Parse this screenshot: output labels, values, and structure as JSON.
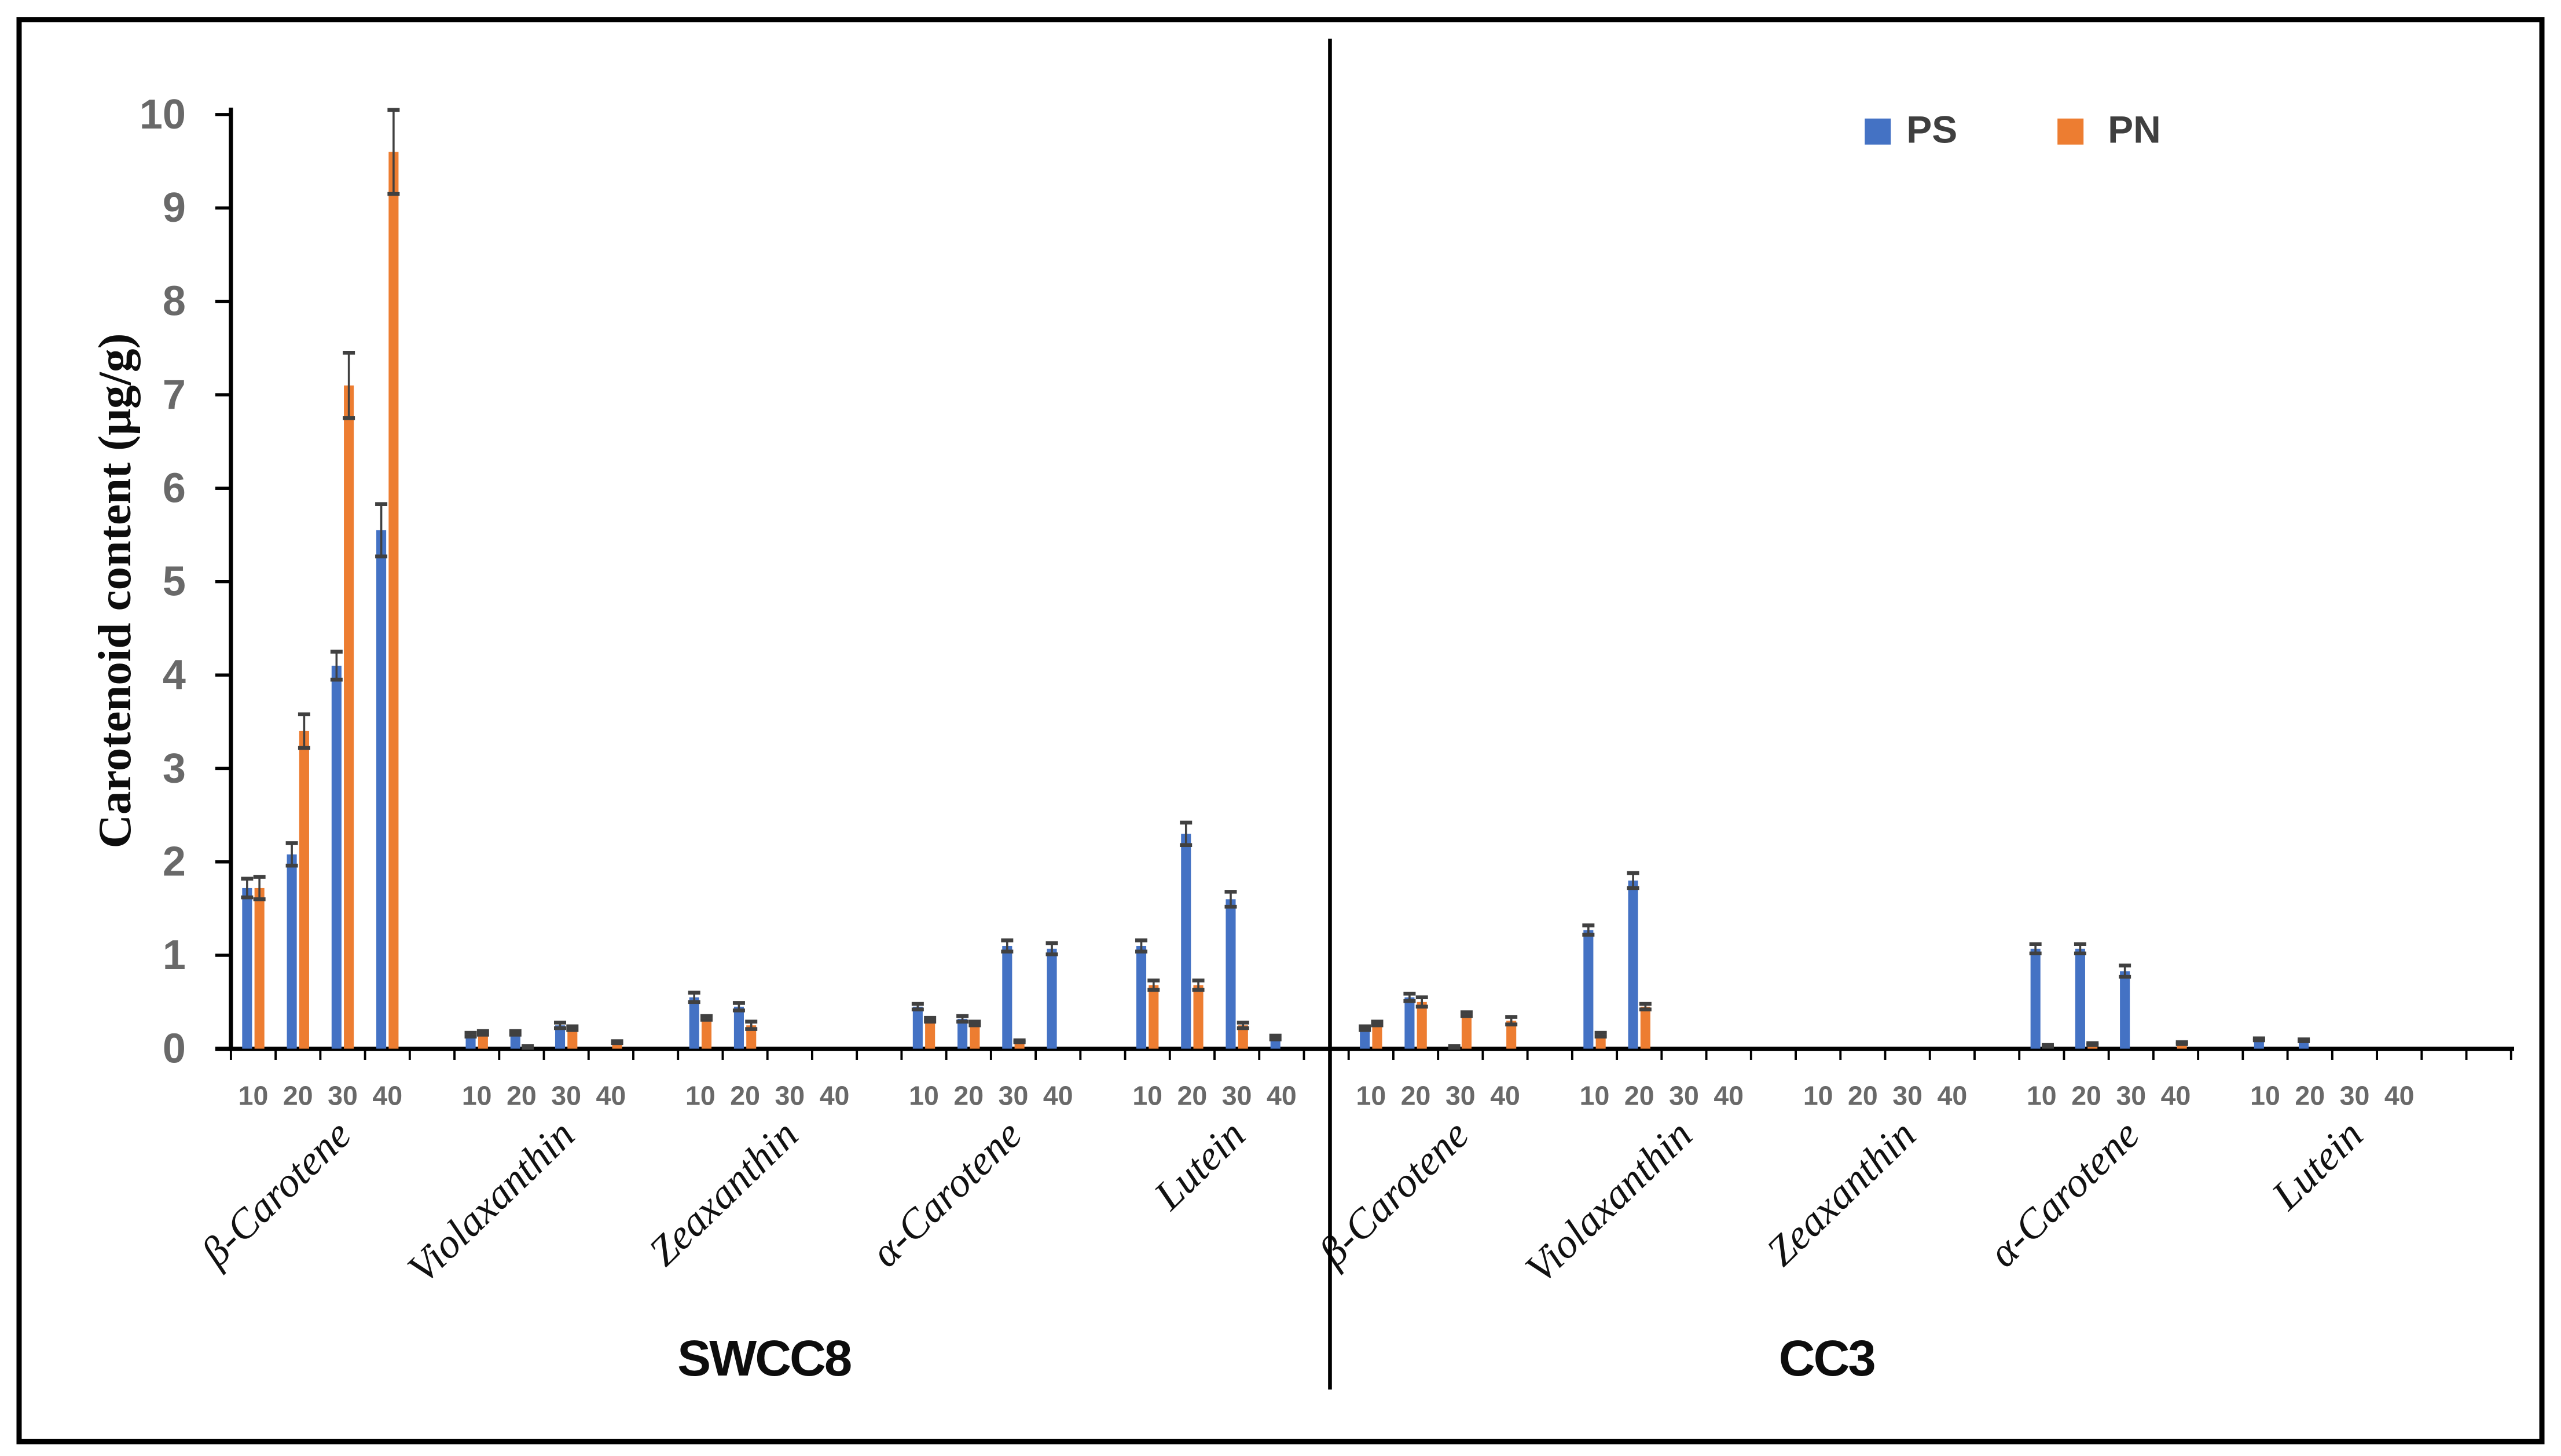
{
  "figure": {
    "kind": "scientific-bar-figure",
    "background": "#ffffff",
    "border_color": "#000000"
  },
  "chart_data": {
    "type": "bar",
    "title": "",
    "xlabel": "",
    "ylabel": "Carotenoid content (μg/g)",
    "ylim": [
      0,
      10
    ],
    "yticks": [
      0,
      1,
      2,
      3,
      4,
      5,
      6,
      7,
      8,
      9,
      10
    ],
    "grid": false,
    "doses": [
      "10",
      "20",
      "30",
      "40"
    ],
    "series_names": [
      "PS",
      "PN"
    ],
    "colors": {
      "PS": "#4472C4",
      "PN": "#ED7D31",
      "error": "#404040",
      "axis": "#000000",
      "tick_label": "#696969"
    },
    "legend": {
      "position": "top-right",
      "items": [
        {
          "name": "PS",
          "color": "#4472C4"
        },
        {
          "name": "PN",
          "color": "#ED7D31"
        }
      ]
    },
    "panels": [
      {
        "label": "SWCC8",
        "groups": [
          {
            "name": "β-Carotene",
            "PS": [
              1.72,
              2.08,
              4.1,
              5.55
            ],
            "PS_err": [
              0.1,
              0.12,
              0.15,
              0.28
            ],
            "PN": [
              1.72,
              3.4,
              7.1,
              9.6
            ],
            "PN_err": [
              0.12,
              0.18,
              0.35,
              0.45
            ]
          },
          {
            "name": "Violaxanthin",
            "PS": [
              0.15,
              0.17,
              0.25,
              0
            ],
            "PS_err": [
              0.02,
              0.02,
              0.03,
              0
            ],
            "PN": [
              0.17,
              0.02,
              0.22,
              0.07
            ],
            "PN_err": [
              0.02,
              0.01,
              0.02,
              0.01
            ]
          },
          {
            "name": "Zeaxanthin",
            "PS": [
              0.55,
              0.45,
              0,
              0
            ],
            "PS_err": [
              0.05,
              0.04,
              0,
              0
            ],
            "PN": [
              0.33,
              0.25,
              0,
              0
            ],
            "PN_err": [
              0.02,
              0.04,
              0,
              0
            ]
          },
          {
            "name": "α-Carotene",
            "PS": [
              0.45,
              0.32,
              1.1,
              1.07
            ],
            "PS_err": [
              0.03,
              0.03,
              0.06,
              0.06
            ],
            "PN": [
              0.31,
              0.27,
              0.08,
              0
            ],
            "PN_err": [
              0.02,
              0.02,
              0.01,
              0
            ]
          },
          {
            "name": "Lutein",
            "PS": [
              1.1,
              2.3,
              1.6,
              0.12
            ],
            "PS_err": [
              0.06,
              0.12,
              0.08,
              0.02
            ],
            "PN": [
              0.68,
              0.68,
              0.25,
              0
            ],
            "PN_err": [
              0.05,
              0.05,
              0.03,
              0
            ]
          }
        ]
      },
      {
        "label": "CC3",
        "groups": [
          {
            "name": "β-Carotene",
            "PS": [
              0.22,
              0.55,
              0.02,
              0
            ],
            "PS_err": [
              0.02,
              0.04,
              0.01,
              0
            ],
            "PN": [
              0.27,
              0.5,
              0.37,
              0.3
            ],
            "PN_err": [
              0.02,
              0.05,
              0.02,
              0.04
            ]
          },
          {
            "name": "Violaxanthin",
            "PS": [
              1.27,
              1.8,
              0,
              0
            ],
            "PS_err": [
              0.05,
              0.08,
              0,
              0
            ],
            "PN": [
              0.15,
              0.45,
              0,
              0
            ],
            "PN_err": [
              0.02,
              0.03,
              0,
              0
            ]
          },
          {
            "name": "Zeaxanthin",
            "PS": [
              0,
              0,
              0,
              0
            ],
            "PS_err": [
              0,
              0,
              0,
              0
            ],
            "PN": [
              0,
              0,
              0,
              0
            ],
            "PN_err": [
              0,
              0,
              0,
              0
            ]
          },
          {
            "name": "α-Carotene",
            "PS": [
              1.07,
              1.07,
              0.83,
              0
            ],
            "PS_err": [
              0.05,
              0.05,
              0.06,
              0
            ],
            "PN": [
              0.03,
              0.05,
              0,
              0.06
            ],
            "PN_err": [
              0.01,
              0.01,
              0,
              0.01
            ]
          },
          {
            "name": "Lutein",
            "PS": [
              0.1,
              0.09,
              0,
              0
            ],
            "PS_err": [
              0.01,
              0.01,
              0,
              0
            ],
            "PN": [
              0,
              0,
              0,
              0
            ],
            "PN_err": [
              0,
              0,
              0,
              0
            ]
          }
        ]
      }
    ]
  }
}
